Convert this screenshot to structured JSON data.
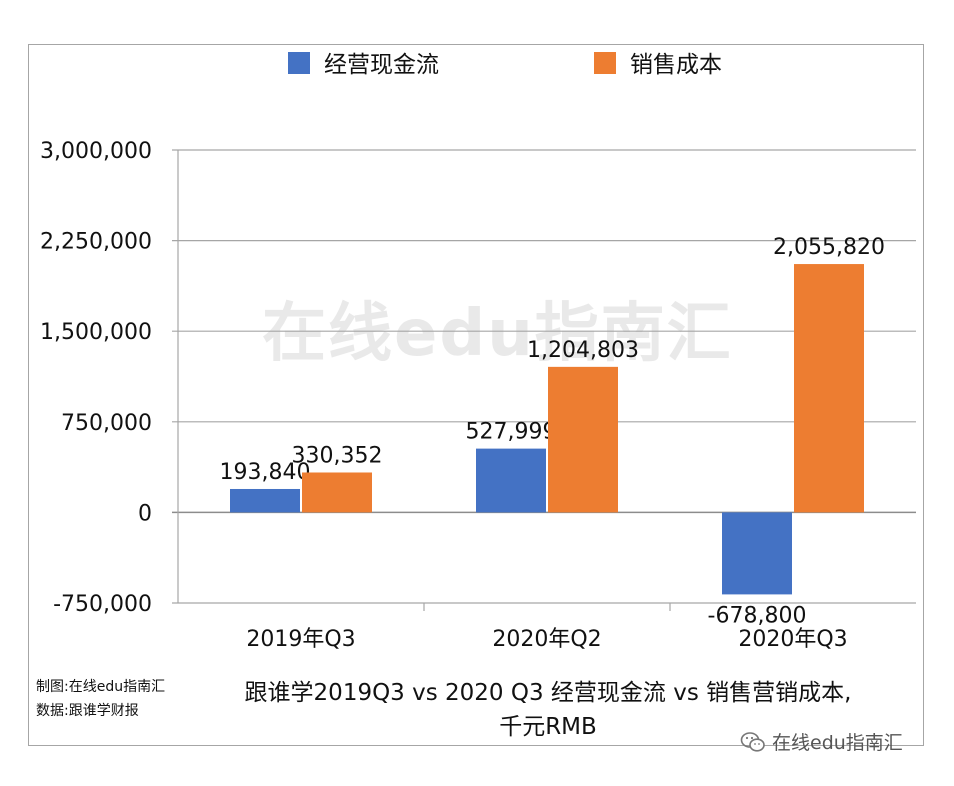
{
  "chart_data": {
    "type": "bar",
    "title": "跟谁学2019Q3 vs 2020 Q3 经营现金流 vs 销售营销成本,千元RMB",
    "title_lines": [
      "跟谁学2019Q3 vs 2020 Q3 经营现金流 vs 销售营销成本,",
      "千元RMB"
    ],
    "categories": [
      "2019年Q3",
      "2020年Q2",
      "2020年Q3"
    ],
    "series": [
      {
        "name": "经营现金流",
        "color": "#4472c4",
        "values": [
          193840,
          527999,
          -678800
        ],
        "labels": [
          "193,840",
          "527,999",
          "-678,800"
        ]
      },
      {
        "name": "销售成本",
        "color": "#ed7d31",
        "values": [
          330352,
          1204803,
          2055820
        ],
        "labels": [
          "330,352",
          "1,204,803",
          "2,055,820"
        ]
      }
    ],
    "ylim": [
      -750000,
      3000000
    ],
    "yticks": [
      -750000,
      0,
      750000,
      1500000,
      2250000,
      3000000
    ],
    "ytick_labels": [
      "-750,000",
      "0",
      "750,000",
      "1,500,000",
      "2,250,000",
      "3,000,000"
    ],
    "grid": true,
    "legend_position": "top-center"
  },
  "watermark": "在线edu指南汇",
  "credits": {
    "made_by": "制图:在线edu指南汇",
    "source": "数据:跟谁学财报"
  },
  "corner_mark": "在线edu指南汇"
}
